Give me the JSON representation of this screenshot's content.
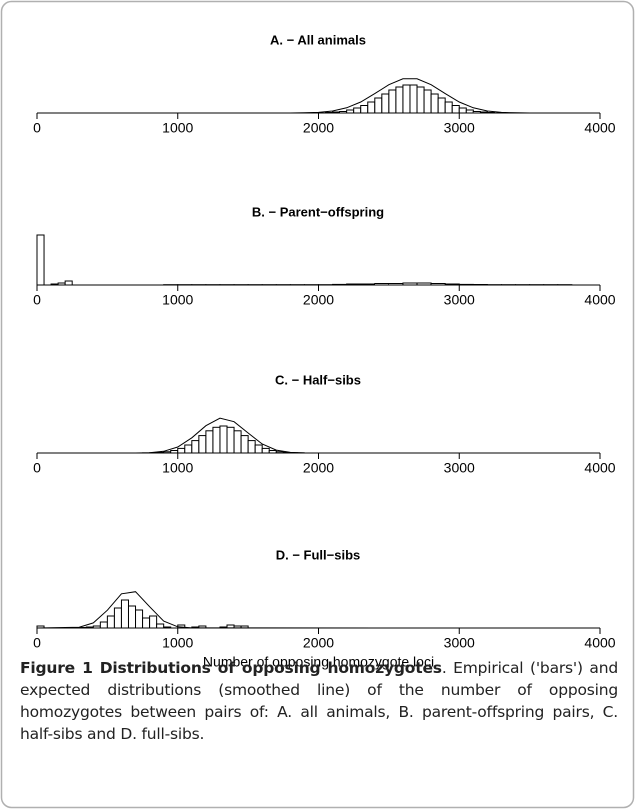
{
  "chart_data": [
    {
      "type": "histogram",
      "title": "A. − All animals",
      "xlim": [
        0,
        4000
      ],
      "xticks": [
        0,
        1000,
        2000,
        3000,
        4000
      ],
      "ylim": [
        0,
        40
      ],
      "bins": [
        1900,
        1950,
        2000,
        2050,
        2100,
        2150,
        2200,
        2250,
        2300,
        2350,
        2400,
        2450,
        2500,
        2550,
        2600,
        2650,
        2700,
        2750,
        2800,
        2850,
        2900,
        2950,
        3000,
        3050,
        3100,
        3150,
        3200,
        3250,
        3300,
        3350,
        3400
      ],
      "values": [
        0,
        0,
        0,
        0.5,
        1,
        1.5,
        3,
        5,
        7.5,
        11,
        15,
        19,
        23,
        26,
        28,
        28,
        26,
        23,
        19,
        15,
        11,
        7.5,
        5,
        3,
        1.5,
        1,
        0.5,
        0,
        0,
        0
      ],
      "line": {
        "x": [
          0,
          1600,
          1700,
          1800,
          1900,
          2000,
          2100,
          2200,
          2300,
          2400,
          2500,
          2600,
          2700,
          2800,
          2900,
          3000,
          3100,
          3200,
          3300,
          3400,
          3500,
          3600,
          3700,
          4000
        ],
        "values": [
          0,
          0,
          0,
          0,
          0.2,
          0.6,
          2,
          5.2,
          11,
          19.4,
          28.3,
          34.2,
          34.2,
          28.3,
          19.4,
          11,
          5.2,
          2,
          0.6,
          0.2,
          0,
          0,
          0,
          0
        ]
      }
    },
    {
      "type": "histogram",
      "title": "B. − Parent−offspring",
      "xlim": [
        0,
        4000
      ],
      "xticks": [
        0,
        1000,
        2000,
        3000,
        4000
      ],
      "ylim": [
        0,
        50
      ],
      "bins": [
        0,
        50,
        100,
        150,
        200,
        250,
        300,
        400,
        500,
        600,
        700,
        800,
        900,
        1000,
        1100,
        1200,
        1300,
        1400,
        1500,
        1600,
        1700,
        1800,
        1900,
        2000,
        2100,
        2200,
        2300,
        2400,
        2500,
        2600,
        2700,
        2800,
        2900,
        3000,
        3100,
        3200,
        3300,
        3400,
        3500,
        3600,
        3700,
        3800
      ],
      "values": [
        50,
        0,
        1,
        2,
        4,
        0,
        0,
        0,
        0,
        0,
        0,
        0,
        0.3,
        0.3,
        0.3,
        0.3,
        0.3,
        0.3,
        0.3,
        0.3,
        0.3,
        0.3,
        0.3,
        0.3,
        0.6,
        1,
        1,
        1.5,
        1.5,
        2,
        2,
        1.5,
        1,
        0.6,
        0.5,
        0.3,
        0.3,
        0.3,
        0.3,
        0.3,
        0.3
      ]
    },
    {
      "type": "histogram",
      "title": "C. − Half−sibs",
      "xlim": [
        0,
        4000
      ],
      "xticks": [
        0,
        1000,
        2000,
        3000,
        4000
      ],
      "ylim": [
        0,
        40
      ],
      "bins": [
        700,
        750,
        800,
        850,
        900,
        950,
        1000,
        1050,
        1100,
        1150,
        1200,
        1250,
        1300,
        1350,
        1400,
        1450,
        1500,
        1550,
        1600,
        1650,
        1700,
        1750,
        1800,
        1850,
        1900,
        1950,
        2000
      ],
      "values": [
        0,
        0.1,
        0.2,
        0.5,
        1.2,
        2.5,
        4.6,
        8,
        12.4,
        17.4,
        22.2,
        25.7,
        27,
        25.7,
        22.2,
        17.4,
        12.4,
        8,
        4.6,
        2.5,
        1.2,
        0.5,
        0.2,
        0.1,
        0,
        0
      ],
      "line": {
        "x": [
          0,
          700,
          800,
          900,
          1000,
          1100,
          1200,
          1300,
          1400,
          1500,
          1600,
          1700,
          1800,
          1900,
          2000,
          4000
        ],
        "values": [
          0,
          0,
          0.3,
          1.7,
          6,
          15.2,
          27.3,
          34.8,
          31.3,
          20,
          9,
          2.9,
          0.6,
          0.1,
          0,
          0
        ]
      }
    },
    {
      "type": "histogram",
      "title": "D. − Full−sibs",
      "xlabel": "Number of opposing homozygote loci",
      "xlim": [
        0,
        4000
      ],
      "xticks": [
        0,
        1000,
        2000,
        3000,
        4000
      ],
      "ylim": [
        0,
        40
      ],
      "bins": [
        0,
        50,
        100,
        150,
        200,
        250,
        300,
        350,
        400,
        450,
        500,
        550,
        600,
        650,
        700,
        750,
        800,
        850,
        900,
        950,
        1000,
        1050,
        1100,
        1150,
        1200,
        1250,
        1300,
        1350,
        1400,
        1450,
        1500
      ],
      "values": [
        2,
        0,
        0,
        0,
        0,
        0,
        0.5,
        1,
        2,
        6,
        12,
        20,
        28,
        22,
        18,
        10,
        12,
        4,
        1,
        0,
        3,
        0,
        1,
        2,
        0,
        0,
        1,
        3,
        2,
        2
      ],
      "line": {
        "x": [
          0,
          300,
          400,
          500,
          600,
          700,
          800,
          900,
          1000,
          1100,
          4000
        ],
        "values": [
          0,
          0.8,
          5.1,
          17.8,
          34.2,
          36.3,
          21.3,
          6.9,
          1.2,
          0.1,
          0
        ]
      }
    }
  ],
  "caption": {
    "label": "Figure 1",
    "title": "Distributions of opposing homozygotes",
    "text": ". Empirical ('bars') and expected distributions (smoothed line) of the number of opposing homozygotes between pairs of: A. all animals, B. parent-offspring pairs, C. half-sibs and D. full-sibs."
  }
}
